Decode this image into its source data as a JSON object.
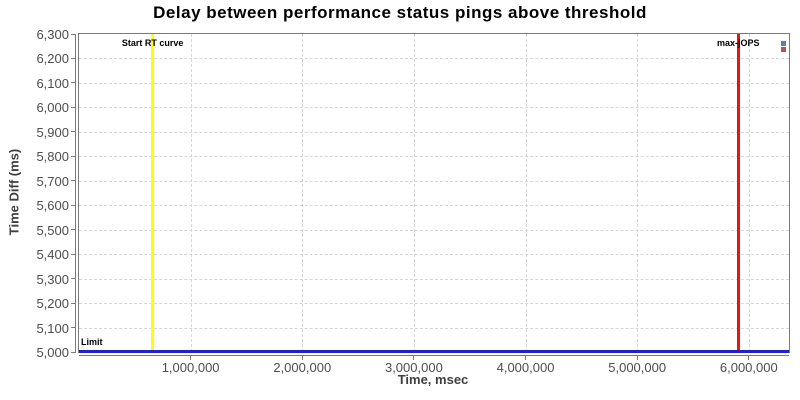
{
  "chart_data": {
    "type": "line",
    "title": "Delay between performance status pings above threshold",
    "xlabel": "Time, msec",
    "ylabel": "Time Diff (ms)",
    "xlim": [
      0,
      6360000
    ],
    "ylim": [
      5000,
      6300
    ],
    "grid": "dashed",
    "legend_position": "top-right-inside",
    "y_ticks": [
      {
        "value": 5000,
        "label": "5,000"
      },
      {
        "value": 5100,
        "label": "5,100"
      },
      {
        "value": 5200,
        "label": "5,200"
      },
      {
        "value": 5300,
        "label": "5,300"
      },
      {
        "value": 5400,
        "label": "5,400"
      },
      {
        "value": 5500,
        "label": "5,500"
      },
      {
        "value": 5600,
        "label": "5,600"
      },
      {
        "value": 5700,
        "label": "5,700"
      },
      {
        "value": 5800,
        "label": "5,800"
      },
      {
        "value": 5900,
        "label": "5,900"
      },
      {
        "value": 6000,
        "label": "6,000"
      },
      {
        "value": 6100,
        "label": "6,100"
      },
      {
        "value": 6200,
        "label": "6,200"
      },
      {
        "value": 6300,
        "label": "6,300"
      }
    ],
    "x_ticks": [
      {
        "value": 1000000,
        "label": "1,000,000"
      },
      {
        "value": 2000000,
        "label": "2,000,000"
      },
      {
        "value": 3000000,
        "label": "3,000,000"
      },
      {
        "value": 4000000,
        "label": "4,000,000"
      },
      {
        "value": 5000000,
        "label": "5,000,000"
      },
      {
        "value": 6000000,
        "label": "6,000,000"
      }
    ],
    "vlines": [
      {
        "name": "start-rt-curve",
        "x": 660000,
        "label": "Start RT curve",
        "color": "#ffff00"
      },
      {
        "name": "max-jops",
        "x": 5905000,
        "label": "max-jOPS",
        "color": "#ee1111"
      }
    ],
    "hlines": [
      {
        "name": "limit",
        "y": 5000,
        "label": "Limit",
        "color": "#2121c8"
      }
    ],
    "legend_swatches": [
      {
        "name": "series-blue",
        "color": "#4f81bd"
      },
      {
        "name": "series-red",
        "color": "#c0504d"
      }
    ],
    "series": []
  },
  "colors": {
    "grid": "#d6d6d6",
    "axis": "#7a7a7a",
    "tick_label": "#4d4d4d",
    "axis_label": "#3f3f3f",
    "title": "#000000"
  }
}
